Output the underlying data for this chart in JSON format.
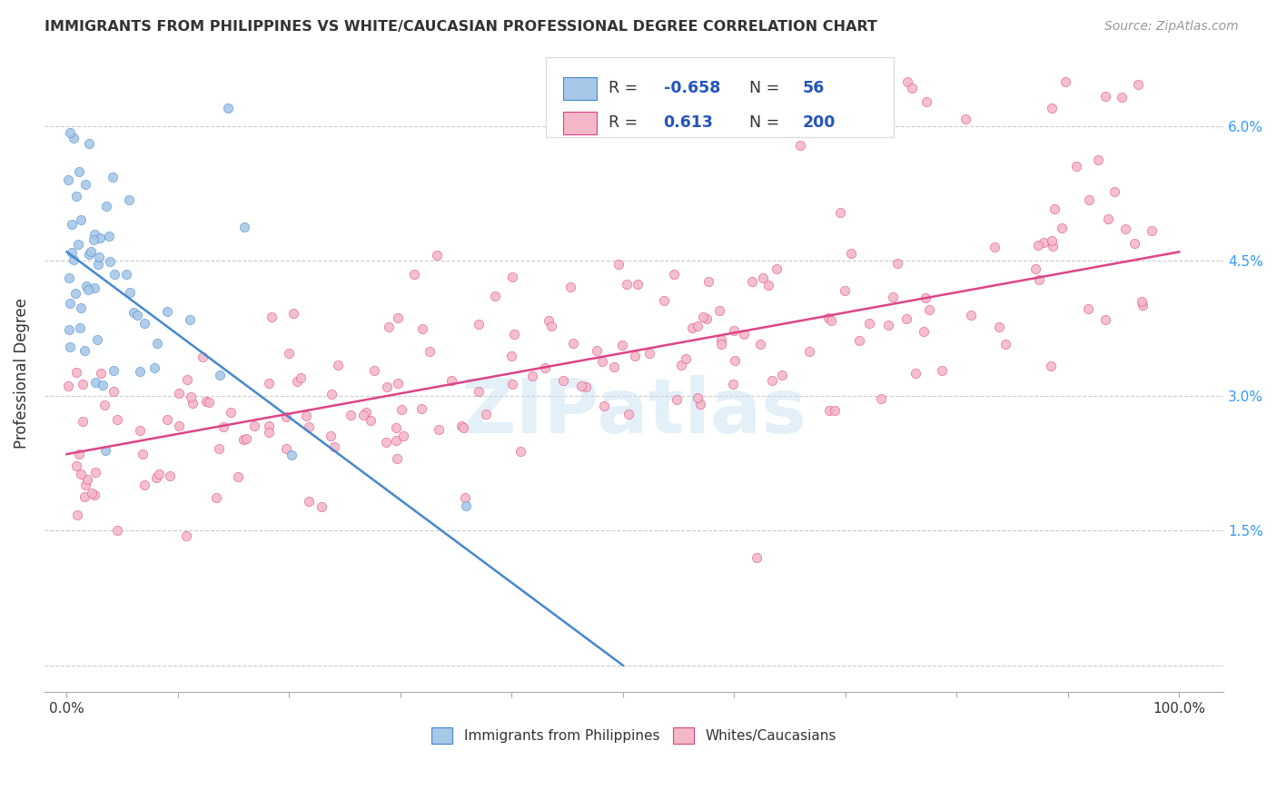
{
  "title": "IMMIGRANTS FROM PHILIPPINES VS WHITE/CAUCASIAN PROFESSIONAL DEGREE CORRELATION CHART",
  "source": "Source: ZipAtlas.com",
  "ylabel": "Professional Degree",
  "color_blue": "#a8c8e8",
  "color_pink": "#f4b8c8",
  "line_blue": "#4488cc",
  "line_pink": "#dd4488",
  "watermark": "ZIPatlas",
  "blue_line_x": [
    0.0,
    0.5
  ],
  "blue_line_y": [
    0.046,
    0.0
  ],
  "pink_line_x": [
    0.0,
    1.0
  ],
  "pink_line_y": [
    0.0235,
    0.046
  ],
  "xlim": [
    -0.02,
    1.04
  ],
  "ylim": [
    -0.003,
    0.068
  ],
  "ytick_vals": [
    0.0,
    0.015,
    0.03,
    0.045,
    0.06
  ],
  "ytick_labels": [
    "",
    "1.5%",
    "3.0%",
    "4.5%",
    "6.0%"
  ],
  "legend_r1_label": "R = ",
  "legend_r1_val": "-0.658",
  "legend_n1_label": "N = ",
  "legend_n1_val": "56",
  "legend_r2_label": "R = ",
  "legend_r2_val": "0.613",
  "legend_n2_label": "N = ",
  "legend_n2_val": "200",
  "text_color": "#333333",
  "blue_val_color": "#2255bb",
  "grid_color": "#cccccc",
  "tick_color": "#aaaaaa"
}
